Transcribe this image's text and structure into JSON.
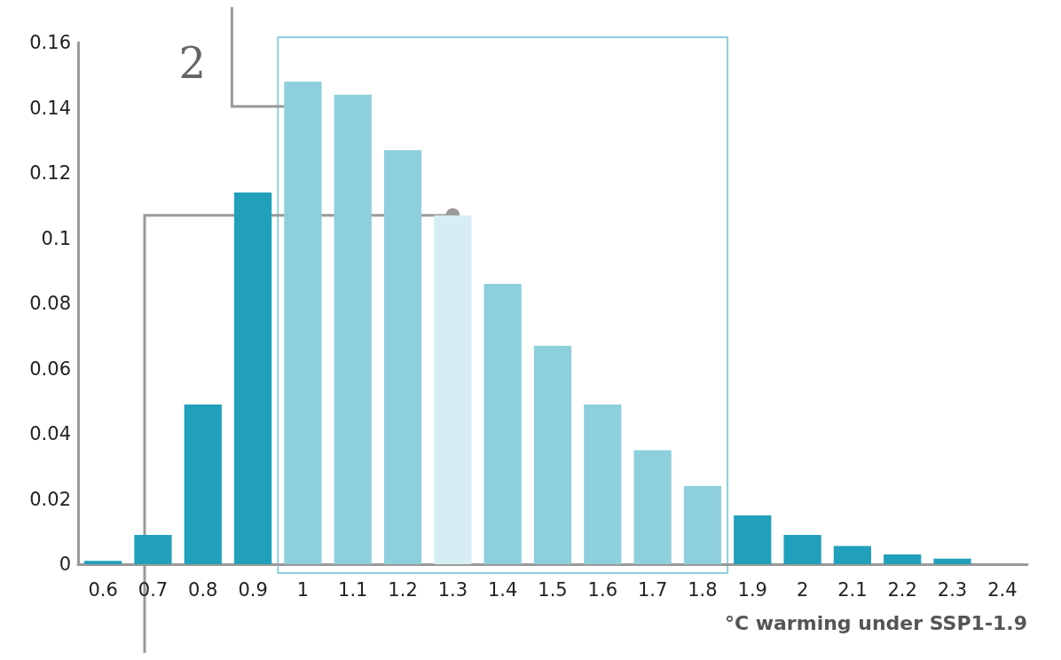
{
  "chart_data": {
    "type": "bar",
    "categories": [
      "0.6",
      "0.7",
      "0.8",
      "0.9",
      "1",
      "1.1",
      "1.2",
      "1.3",
      "1.4",
      "1.5",
      "1.6",
      "1.7",
      "1.8",
      "1.9",
      "2",
      "2.1",
      "2.2",
      "2.3",
      "2.4"
    ],
    "values": [
      0.001,
      0.009,
      0.049,
      0.114,
      0.148,
      0.144,
      0.127,
      0.107,
      0.086,
      0.067,
      0.049,
      0.035,
      0.024,
      0.015,
      0.009,
      0.0056,
      0.003,
      0.0017,
      0
    ],
    "colors": [
      "#21a0bc",
      "#21a0bc",
      "#21a0bc",
      "#21a0bc",
      "#8ecfdc",
      "#8ecfdc",
      "#8ecfdc",
      "#d6eef3",
      "#8ecfdc",
      "#8ecfdc",
      "#8ecfdc",
      "#8ecfdc",
      "#8ecfdc",
      "#21a0bc",
      "#21a0bc",
      "#21a0bc",
      "#21a0bc",
      "#21a0bc",
      "#21a0bc"
    ],
    "ylim": [
      0,
      0.16
    ],
    "yticks": [
      0,
      0.02,
      0.04,
      0.06,
      0.08,
      0.1,
      0.12,
      0.14,
      0.16
    ],
    "xlabel": "°C warming under SSP1-1.9",
    "annotations": [
      "2"
    ],
    "grid": false
  }
}
